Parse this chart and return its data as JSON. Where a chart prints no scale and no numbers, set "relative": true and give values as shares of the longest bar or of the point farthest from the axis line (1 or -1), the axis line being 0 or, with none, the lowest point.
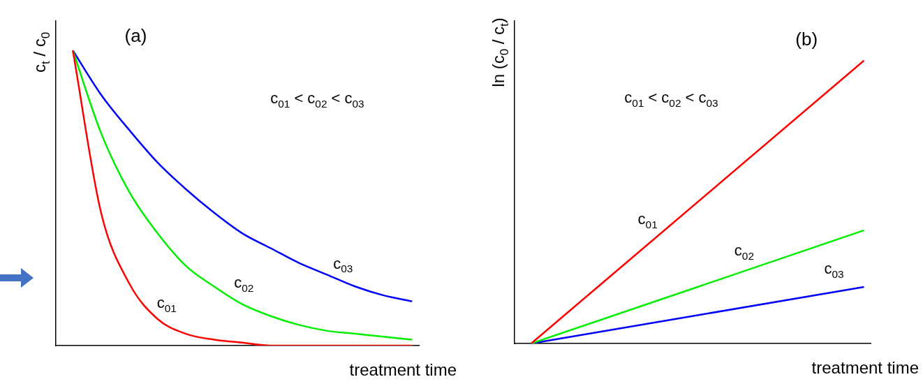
{
  "chart_data": [
    {
      "type": "line",
      "title": "(a)",
      "ylabel": "c$_{t}$ / c$_{0}$",
      "xlabel": "treatment time",
      "relative": true,
      "legend": false,
      "grid": false,
      "marker": "none",
      "annotations": [
        "c$_{01}$ < c$_{02}$ < c$_{03}$"
      ],
      "categories": [
        null,
        null,
        null,
        null,
        null,
        null,
        null,
        null,
        null,
        null,
        null,
        null,
        null
      ],
      "series": [
        {
          "name": "c$_{01}$",
          "color": "#ff0000",
          "values": [
            1,
            0.45,
            0.21,
            0.09,
            0.04,
            0.02,
            0.01,
            0,
            0,
            0,
            0,
            0,
            0
          ]
        },
        {
          "name": "c$_{02}$",
          "color": "#00ee00",
          "values": [
            1,
            0.72,
            0.52,
            0.38,
            0.27,
            0.2,
            0.14,
            0.1,
            0.07,
            0.05,
            0.04,
            0.03,
            0.02
          ]
        },
        {
          "name": "c$_{03}$",
          "color": "#0000ff",
          "values": [
            1,
            0.85,
            0.73,
            0.62,
            0.53,
            0.45,
            0.38,
            0.33,
            0.28,
            0.24,
            0.2,
            0.17,
            0.15
          ]
        }
      ]
    },
    {
      "type": "line",
      "title": "(b)",
      "ylabel": "ln (c$_{0}$ / c$_{t}$)",
      "xlabel": "treatment time",
      "relative": true,
      "legend": false,
      "grid": false,
      "marker": "none",
      "annotations": [
        "c$_{01}$ < c$_{02}$ < c$_{03}$"
      ],
      "categories": [
        null,
        null
      ],
      "series": [
        {
          "name": "c$_{01}$",
          "color": "#ff0000",
          "values": [
            0,
            1
          ]
        },
        {
          "name": "c$_{02}$",
          "color": "#00ee00",
          "values": [
            0,
            0.4
          ]
        },
        {
          "name": "c$_{03}$",
          "color": "#0000ff",
          "values": [
            0,
            0.2
          ]
        }
      ]
    }
  ]
}
